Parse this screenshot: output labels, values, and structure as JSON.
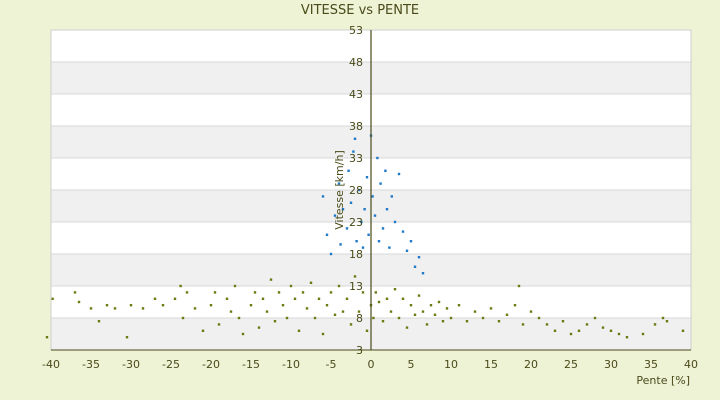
{
  "chart_data": {
    "type": "scatter",
    "title": "VITESSE vs PENTE",
    "xlabel": "Pente [%]",
    "ylabel": "Vitesse [km/h]",
    "xlim": [
      -40,
      40
    ],
    "ylim": [
      3,
      53
    ],
    "x_ticks": [
      "-40",
      "-35",
      "-30",
      "-25",
      "-20",
      "-15",
      "-10",
      "-5",
      "0",
      "5",
      "10",
      "15",
      "20",
      "25",
      "30",
      "35",
      "40"
    ],
    "y_ticks": [
      "3",
      "8",
      "13",
      "18",
      "23",
      "28",
      "33",
      "38",
      "43",
      "48",
      "53"
    ],
    "grid": true,
    "legend": false,
    "colors": {
      "background": "#eef3d6",
      "plot_band_light": "#ffffff",
      "plot_band_dark": "#f0f0f0",
      "series_low": "#6b7a12",
      "series_high": "#1f78c8",
      "axis": "#4a4a1a"
    },
    "series": [
      {
        "color": "#6b7a12",
        "points": [
          [
            -40.5,
            5
          ],
          [
            -39.8,
            11
          ],
          [
            -37,
            12
          ],
          [
            -36.5,
            10.5
          ],
          [
            -35,
            9.5
          ],
          [
            -34,
            7.5
          ],
          [
            -33,
            10
          ],
          [
            -32,
            9.5
          ],
          [
            -30.5,
            5
          ],
          [
            -30,
            10
          ],
          [
            -28.5,
            9.5
          ],
          [
            -27,
            11
          ],
          [
            -26,
            10
          ],
          [
            -24.5,
            11
          ],
          [
            -23.8,
            13
          ],
          [
            -23.5,
            8
          ],
          [
            -23,
            12
          ],
          [
            -22,
            9.5
          ],
          [
            -21,
            6
          ],
          [
            -20,
            10
          ],
          [
            -19.5,
            12
          ],
          [
            -19,
            7
          ],
          [
            -18,
            11
          ],
          [
            -17.5,
            9
          ],
          [
            -17,
            13
          ],
          [
            -16.5,
            8
          ],
          [
            -16,
            5.5
          ],
          [
            -15,
            10
          ],
          [
            -14.5,
            12
          ],
          [
            -14,
            6.5
          ],
          [
            -13.5,
            11
          ],
          [
            -13,
            9
          ],
          [
            -12.5,
            14
          ],
          [
            -12,
            7.5
          ],
          [
            -11.5,
            12
          ],
          [
            -11,
            10
          ],
          [
            -10.5,
            8
          ],
          [
            -10,
            13
          ],
          [
            -9.5,
            11
          ],
          [
            -9,
            6
          ],
          [
            -8.5,
            12
          ],
          [
            -8,
            9.5
          ],
          [
            -7.5,
            13.5
          ],
          [
            -7,
            8
          ],
          [
            -6.5,
            11
          ],
          [
            -6,
            5.5
          ],
          [
            -5.5,
            10
          ],
          [
            -5,
            12
          ],
          [
            -4.5,
            8.5
          ],
          [
            -4,
            13
          ],
          [
            -3.5,
            9
          ],
          [
            -3,
            11
          ],
          [
            -2.5,
            7
          ],
          [
            -2,
            14.5
          ],
          [
            -1.5,
            9
          ],
          [
            -1,
            12
          ],
          [
            -0.5,
            6
          ],
          [
            0,
            10
          ],
          [
            0.3,
            8
          ],
          [
            0.6,
            12
          ],
          [
            1,
            10.5
          ],
          [
            1.5,
            7.5
          ],
          [
            2,
            11
          ],
          [
            2.5,
            9
          ],
          [
            3,
            12.5
          ],
          [
            3.5,
            8
          ],
          [
            4,
            11
          ],
          [
            4.5,
            6.5
          ],
          [
            5,
            10
          ],
          [
            5.5,
            8.5
          ],
          [
            6,
            11.5
          ],
          [
            6.5,
            9
          ],
          [
            7,
            7
          ],
          [
            7.5,
            10
          ],
          [
            8,
            8.5
          ],
          [
            8.5,
            10.5
          ],
          [
            9,
            7.5
          ],
          [
            9.5,
            9.5
          ],
          [
            10,
            8
          ],
          [
            11,
            10
          ],
          [
            12,
            7.5
          ],
          [
            13,
            9
          ],
          [
            14,
            8
          ],
          [
            15,
            9.5
          ],
          [
            16,
            7.5
          ],
          [
            17,
            8.5
          ],
          [
            18,
            10
          ],
          [
            18.5,
            13
          ],
          [
            19,
            7
          ],
          [
            20,
            9
          ],
          [
            21,
            8
          ],
          [
            22,
            7
          ],
          [
            23,
            6
          ],
          [
            24,
            7.5
          ],
          [
            25,
            5.5
          ],
          [
            26,
            6
          ],
          [
            27,
            7
          ],
          [
            28,
            8
          ],
          [
            29,
            6.5
          ],
          [
            30,
            6
          ],
          [
            31,
            5.5
          ],
          [
            32,
            5
          ],
          [
            34,
            5.5
          ],
          [
            35.5,
            7
          ],
          [
            36.5,
            8
          ],
          [
            37,
            7.5
          ],
          [
            39,
            6
          ]
        ]
      },
      {
        "color": "#1f78c8",
        "points": [
          [
            -6,
            27
          ],
          [
            -5.5,
            21
          ],
          [
            -5,
            18
          ],
          [
            -4.5,
            24
          ],
          [
            -4,
            29
          ],
          [
            -3.8,
            19.5
          ],
          [
            -3.5,
            25
          ],
          [
            -3,
            22
          ],
          [
            -2.8,
            31
          ],
          [
            -2.5,
            26
          ],
          [
            -2.2,
            34
          ],
          [
            -2,
            36
          ],
          [
            -1.8,
            20
          ],
          [
            -1.5,
            28
          ],
          [
            -1.2,
            23
          ],
          [
            -1,
            19
          ],
          [
            -0.8,
            25
          ],
          [
            -0.5,
            30
          ],
          [
            -0.3,
            21
          ],
          [
            0,
            36.5
          ],
          [
            0.2,
            27
          ],
          [
            0.5,
            24
          ],
          [
            0.8,
            33
          ],
          [
            1,
            20
          ],
          [
            1.2,
            29
          ],
          [
            1.5,
            22
          ],
          [
            1.8,
            31
          ],
          [
            2,
            25
          ],
          [
            2.3,
            19
          ],
          [
            2.6,
            27
          ],
          [
            3,
            23
          ],
          [
            3.5,
            30.5
          ],
          [
            4,
            21.5
          ],
          [
            4.5,
            18.5
          ],
          [
            5,
            20
          ],
          [
            5.5,
            16
          ],
          [
            6,
            17.5
          ],
          [
            6.5,
            15
          ]
        ]
      }
    ]
  }
}
